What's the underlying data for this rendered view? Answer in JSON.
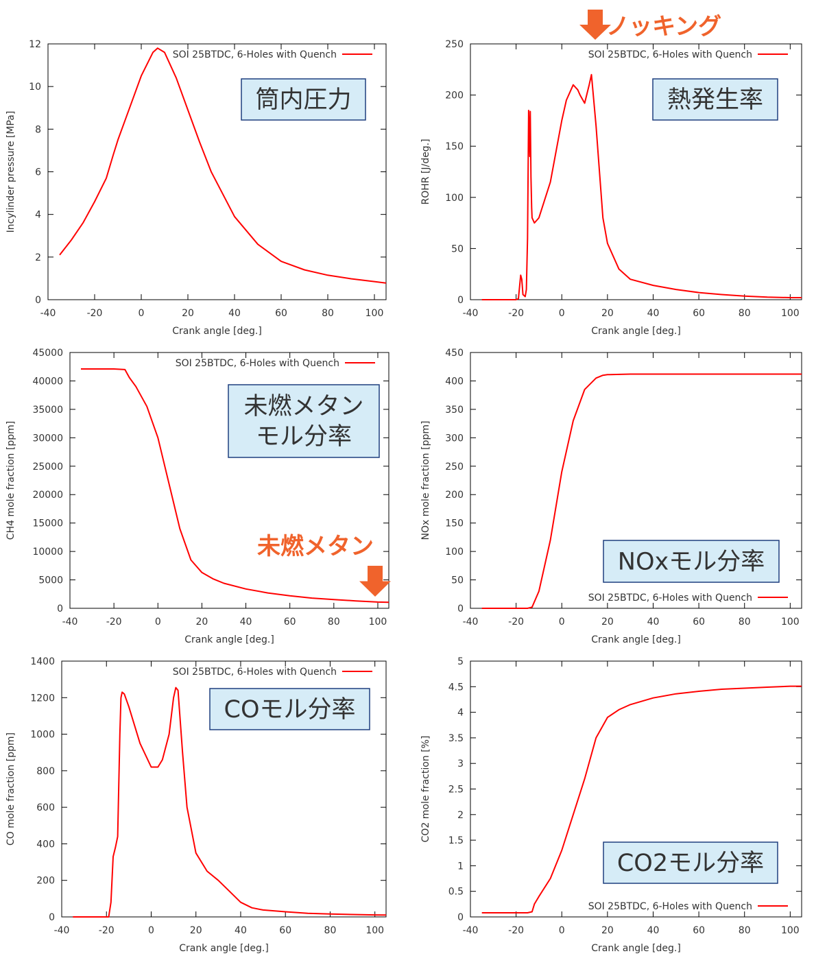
{
  "colors": {
    "series": "#ff0000",
    "box_fill": "#d6ecf7",
    "box_border": "#1f3f7f",
    "annotation": "#f0632c",
    "axis": "#000000"
  },
  "chart_data": [
    {
      "type": "line",
      "xlabel": "Crank angle [deg.]",
      "ylabel": "Incylinder pressure [MPa]",
      "xlim": [
        -40,
        105
      ],
      "ylim": [
        0,
        12
      ],
      "xticks": [
        -40,
        -20,
        0,
        20,
        40,
        60,
        80,
        100
      ],
      "yticks": [
        0,
        2,
        4,
        6,
        8,
        10,
        12
      ],
      "legend": "top-right",
      "legend_label": "SOI 25BTDC, 6-Holes with Quench",
      "label_box": {
        "text": [
          "筒内圧力"
        ]
      },
      "series": [
        {
          "name": "SOI 25BTDC, 6-Holes with Quench",
          "x": [
            -35,
            -30,
            -25,
            -20,
            -15,
            -12,
            -10,
            -5,
            0,
            5,
            7,
            10,
            15,
            20,
            25,
            30,
            40,
            50,
            60,
            70,
            80,
            90,
            100,
            105
          ],
          "y": [
            2.1,
            2.8,
            3.6,
            4.6,
            5.7,
            6.8,
            7.5,
            9.0,
            10.5,
            11.6,
            11.8,
            11.6,
            10.4,
            8.9,
            7.4,
            6.0,
            3.9,
            2.6,
            1.8,
            1.4,
            1.15,
            0.98,
            0.85,
            0.78
          ]
        }
      ]
    },
    {
      "type": "line",
      "xlabel": "Crank angle [deg.]",
      "ylabel": "ROHR [J/deg.]",
      "xlim": [
        -40,
        105
      ],
      "ylim": [
        0,
        250
      ],
      "xticks": [
        -40,
        -20,
        0,
        20,
        40,
        60,
        80,
        100
      ],
      "yticks": [
        0,
        50,
        100,
        150,
        200,
        250
      ],
      "legend": "top-right",
      "legend_label": "SOI 25BTDC, 6-Holes with Quench",
      "label_box": {
        "text": [
          "熱発生率"
        ]
      },
      "annotation": {
        "text": "ノッキング",
        "arrow_x": 14,
        "placement": "above"
      },
      "series": [
        {
          "name": "SOI 25BTDC, 6-Holes with Quench",
          "x": [
            -35,
            -20,
            -19,
            -18,
            -17.5,
            -17,
            -16,
            -15.5,
            -15,
            -14.5,
            -14,
            -13.8,
            -13.5,
            -13.2,
            -13,
            -12,
            -10,
            -5,
            0,
            2,
            5,
            7,
            8,
            10,
            12,
            13,
            15,
            18,
            20,
            25,
            30,
            40,
            50,
            60,
            70,
            80,
            90,
            100,
            105
          ],
          "y": [
            0,
            0,
            1,
            24,
            20,
            5,
            3,
            10,
            60,
            185,
            140,
            184,
            120,
            90,
            80,
            75,
            80,
            115,
            175,
            195,
            210,
            205,
            200,
            192,
            210,
            220,
            170,
            80,
            55,
            30,
            20,
            14,
            10,
            7,
            5,
            3.5,
            2.5,
            2,
            2
          ]
        }
      ]
    },
    {
      "type": "line",
      "xlabel": "Crank angle [deg.]",
      "ylabel": "CH4 mole fraction [ppm]",
      "xlim": [
        -40,
        105
      ],
      "ylim": [
        0,
        45000
      ],
      "xticks": [
        -40,
        -20,
        0,
        20,
        40,
        60,
        80,
        100
      ],
      "yticks": [
        0,
        5000,
        10000,
        15000,
        20000,
        25000,
        30000,
        35000,
        40000,
        45000
      ],
      "legend": "top-right",
      "legend_label": "SOI 25BTDC, 6-Holes with Quench",
      "label_box": {
        "text": [
          "未燃メタン",
          "モル分率"
        ]
      },
      "annotation": {
        "text": "未燃メタン",
        "arrow_x": 100,
        "placement": "above-right"
      },
      "series": [
        {
          "name": "SOI 25BTDC, 6-Holes with Quench",
          "x": [
            -35,
            -20,
            -15,
            -13,
            -10,
            -5,
            0,
            5,
            10,
            15,
            20,
            25,
            30,
            40,
            50,
            60,
            70,
            80,
            90,
            100,
            105
          ],
          "y": [
            42100,
            42100,
            42000,
            40600,
            39000,
            35500,
            30000,
            22000,
            14000,
            8500,
            6300,
            5200,
            4400,
            3400,
            2700,
            2200,
            1800,
            1550,
            1300,
            1100,
            1050
          ]
        }
      ]
    },
    {
      "type": "line",
      "xlabel": "Crank angle [deg.]",
      "ylabel": "NOx mole fraction [ppm]",
      "xlim": [
        -40,
        105
      ],
      "ylim": [
        0,
        450
      ],
      "xticks": [
        -40,
        -20,
        0,
        20,
        40,
        60,
        80,
        100
      ],
      "yticks": [
        0,
        50,
        100,
        150,
        200,
        250,
        300,
        350,
        400,
        450
      ],
      "legend": "bottom-right",
      "legend_label": "SOI 25BTDC, 6-Holes with Quench",
      "label_box": {
        "text": [
          "NOxモル分率"
        ]
      },
      "series": [
        {
          "name": "SOI 25BTDC, 6-Holes with Quench",
          "x": [
            -35,
            -15,
            -13,
            -10,
            -5,
            0,
            5,
            10,
            15,
            18,
            20,
            30,
            40,
            60,
            80,
            100,
            105
          ],
          "y": [
            0,
            0,
            2,
            30,
            120,
            240,
            330,
            385,
            405,
            410,
            411,
            412,
            412,
            412,
            412,
            412,
            412
          ]
        }
      ]
    },
    {
      "type": "line",
      "xlabel": "Crank angle [deg.]",
      "ylabel": "CO mole fraction [ppm]",
      "xlim": [
        -40,
        105
      ],
      "ylim": [
        0,
        1400
      ],
      "xticks": [
        -40,
        -20,
        0,
        20,
        40,
        60,
        80,
        100
      ],
      "yticks": [
        0,
        200,
        400,
        600,
        800,
        1000,
        1200,
        1400
      ],
      "legend": "top-right",
      "legend_label": "SOI 25BTDC, 6-Holes with Quench",
      "label_box": {
        "text": [
          "COモル分率"
        ]
      },
      "series": [
        {
          "name": "SOI 25BTDC, 6-Holes with Quench",
          "x": [
            -35,
            -25,
            -19,
            -18,
            -17,
            -16,
            -15,
            -14,
            -13.5,
            -13,
            -12,
            -10,
            -5,
            0,
            3,
            5,
            8,
            10,
            11,
            12,
            14,
            16,
            20,
            25,
            30,
            35,
            40,
            45,
            50,
            60,
            70,
            80,
            90,
            100,
            105
          ],
          "y": [
            0,
            0,
            0,
            80,
            330,
            380,
            440,
            1000,
            1200,
            1230,
            1220,
            1150,
            950,
            820,
            820,
            860,
            1000,
            1200,
            1255,
            1240,
            900,
            600,
            350,
            250,
            200,
            140,
            80,
            50,
            38,
            28,
            20,
            16,
            13,
            11,
            10
          ]
        }
      ]
    },
    {
      "type": "line",
      "xlabel": "Crank angle [deg.]",
      "ylabel": "CO2 mole fraction [%]",
      "xlim": [
        -40,
        105
      ],
      "ylim": [
        0,
        5
      ],
      "xticks": [
        -40,
        -20,
        0,
        20,
        40,
        60,
        80,
        100
      ],
      "yticks": [
        0,
        0.5,
        1,
        1.5,
        2,
        2.5,
        3,
        3.5,
        4,
        4.5,
        5
      ],
      "legend": "bottom-right",
      "legend_label": "SOI 25BTDC, 6-Holes with Quench",
      "label_box": {
        "text": [
          "CO2モル分率"
        ]
      },
      "series": [
        {
          "name": "SOI 25BTDC, 6-Holes with Quench",
          "x": [
            -35,
            -15,
            -13,
            -12,
            -10,
            -5,
            0,
            5,
            10,
            15,
            20,
            25,
            30,
            40,
            50,
            60,
            70,
            80,
            90,
            100,
            105
          ],
          "y": [
            0.08,
            0.08,
            0.1,
            0.25,
            0.4,
            0.75,
            1.3,
            2.0,
            2.7,
            3.5,
            3.9,
            4.05,
            4.15,
            4.28,
            4.36,
            4.41,
            4.45,
            4.47,
            4.49,
            4.51,
            4.51
          ]
        }
      ]
    }
  ]
}
